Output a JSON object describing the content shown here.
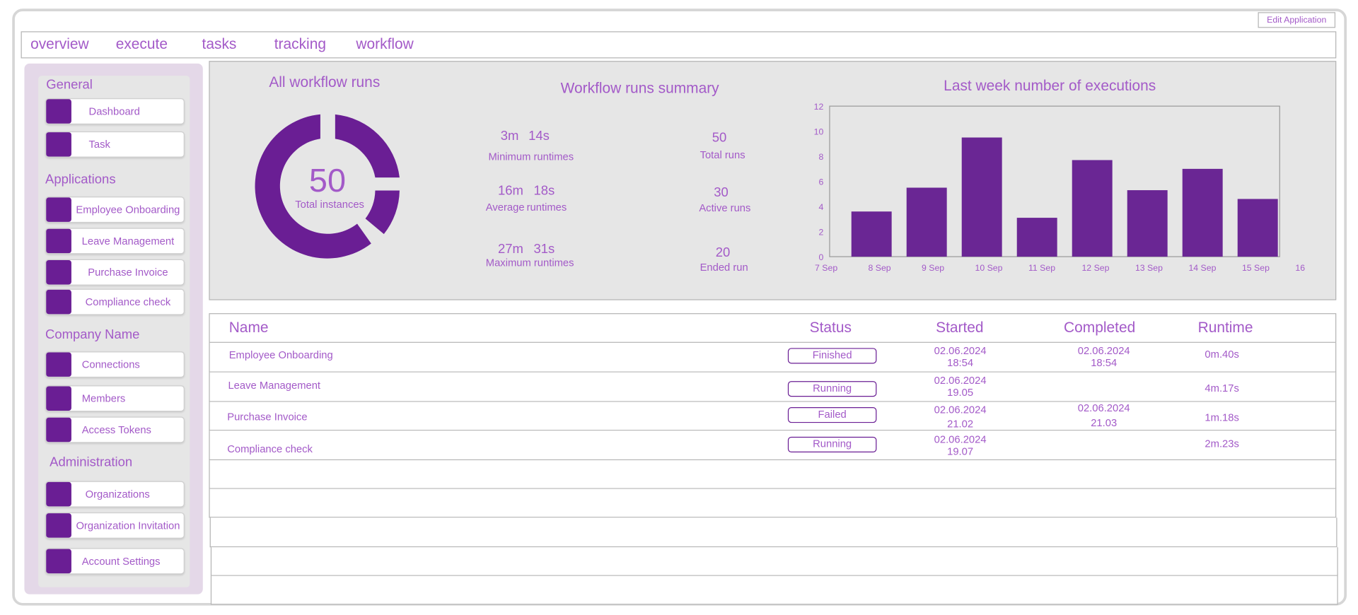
{
  "header": {
    "edit_button": "Edit Application"
  },
  "nav": {
    "tabs": [
      "overview",
      "execute",
      "tasks",
      "tracking",
      "workflow"
    ]
  },
  "sidebar": {
    "sections": [
      {
        "title": "General",
        "items": [
          "Dashboard",
          "Task"
        ]
      },
      {
        "title": "Applications",
        "items": [
          "Employee Onboarding",
          "Leave Management",
          "Purchase Invoice",
          "Compliance check"
        ]
      },
      {
        "title": "Company Name",
        "items": [
          "Connections",
          "Members",
          "Access Tokens"
        ]
      },
      {
        "title": "Administration",
        "items": [
          "Organizations",
          "Organization Invitation",
          "Account Settings"
        ]
      }
    ]
  },
  "donut": {
    "title": "All workflow runs",
    "value": "50",
    "label": "Total instances"
  },
  "summary": {
    "title": "Workflow runs summary",
    "min": {
      "m": "3m",
      "s": "14s",
      "label": "Minimum runtimes"
    },
    "avg": {
      "m": "16m",
      "s": "18s",
      "label_a": "Average",
      "label_b": "runtimes"
    },
    "max": {
      "m": "27m",
      "s": "31s",
      "label": "Maximum runtimes"
    },
    "total": {
      "value": "50",
      "label": "Total runs"
    },
    "active": {
      "value": "30",
      "label": "Active runs"
    },
    "ended": {
      "value": "20",
      "label": "Ended run"
    }
  },
  "chart_data": {
    "type": "bar",
    "title": "Last week number of executions",
    "categories": [
      "8 Sep",
      "9 Sep",
      "10 Sep",
      "11 Sep",
      "12 Sep",
      "13 Sep",
      "14  Sep",
      "15 Sep"
    ],
    "x_tick_labels": [
      "7 Sep",
      "8 Sep",
      "9 Sep",
      "10 Sep",
      "11 Sep",
      "12 Sep",
      "13 Sep",
      "14  Sep",
      "15 Sep",
      "16  Sep"
    ],
    "values": [
      3.6,
      5.5,
      9.5,
      3.1,
      7.7,
      5.3,
      7.0,
      4.6
    ],
    "yticks": [
      "0",
      "2",
      "4",
      "6",
      "8",
      "10",
      "12"
    ],
    "ylim": [
      0,
      12
    ],
    "bar_color": "#6a2694",
    "grid": false
  },
  "table": {
    "headers": {
      "name": "Name",
      "status": "Status",
      "started": "Started",
      "completed": "Completed",
      "runtime": "Runtime"
    },
    "rows": [
      {
        "name": "Employee Onboarding",
        "status": "Finished",
        "started_date": "02.06.2024",
        "started_time": "18:54",
        "completed_date": "02.06.2024",
        "completed_time": "18:54",
        "runtime": "0m.40s"
      },
      {
        "name": "Leave Management",
        "status": "Running",
        "started_date": "02.06.2024",
        "started_time": "19.05",
        "completed_date": "",
        "completed_time": "",
        "runtime": "4m.17s"
      },
      {
        "name": "Purchase Invoice",
        "status": "Failed",
        "started_date": "02.06.2024",
        "started_time": "21.02",
        "completed_date": "02.06.2024",
        "completed_time": "21.03",
        "runtime": "1m.18s"
      },
      {
        "name": "Compliance check",
        "status": "Running",
        "started_date": "02.06.2024",
        "started_time": "19.07",
        "completed_date": "",
        "completed_time": "",
        "runtime": "2m.23s"
      }
    ]
  },
  "colors": {
    "accent": "#6a1e94",
    "text": "#a35ac8",
    "panel": "#e6e6e6",
    "sidebar": "#e4d8e8"
  }
}
